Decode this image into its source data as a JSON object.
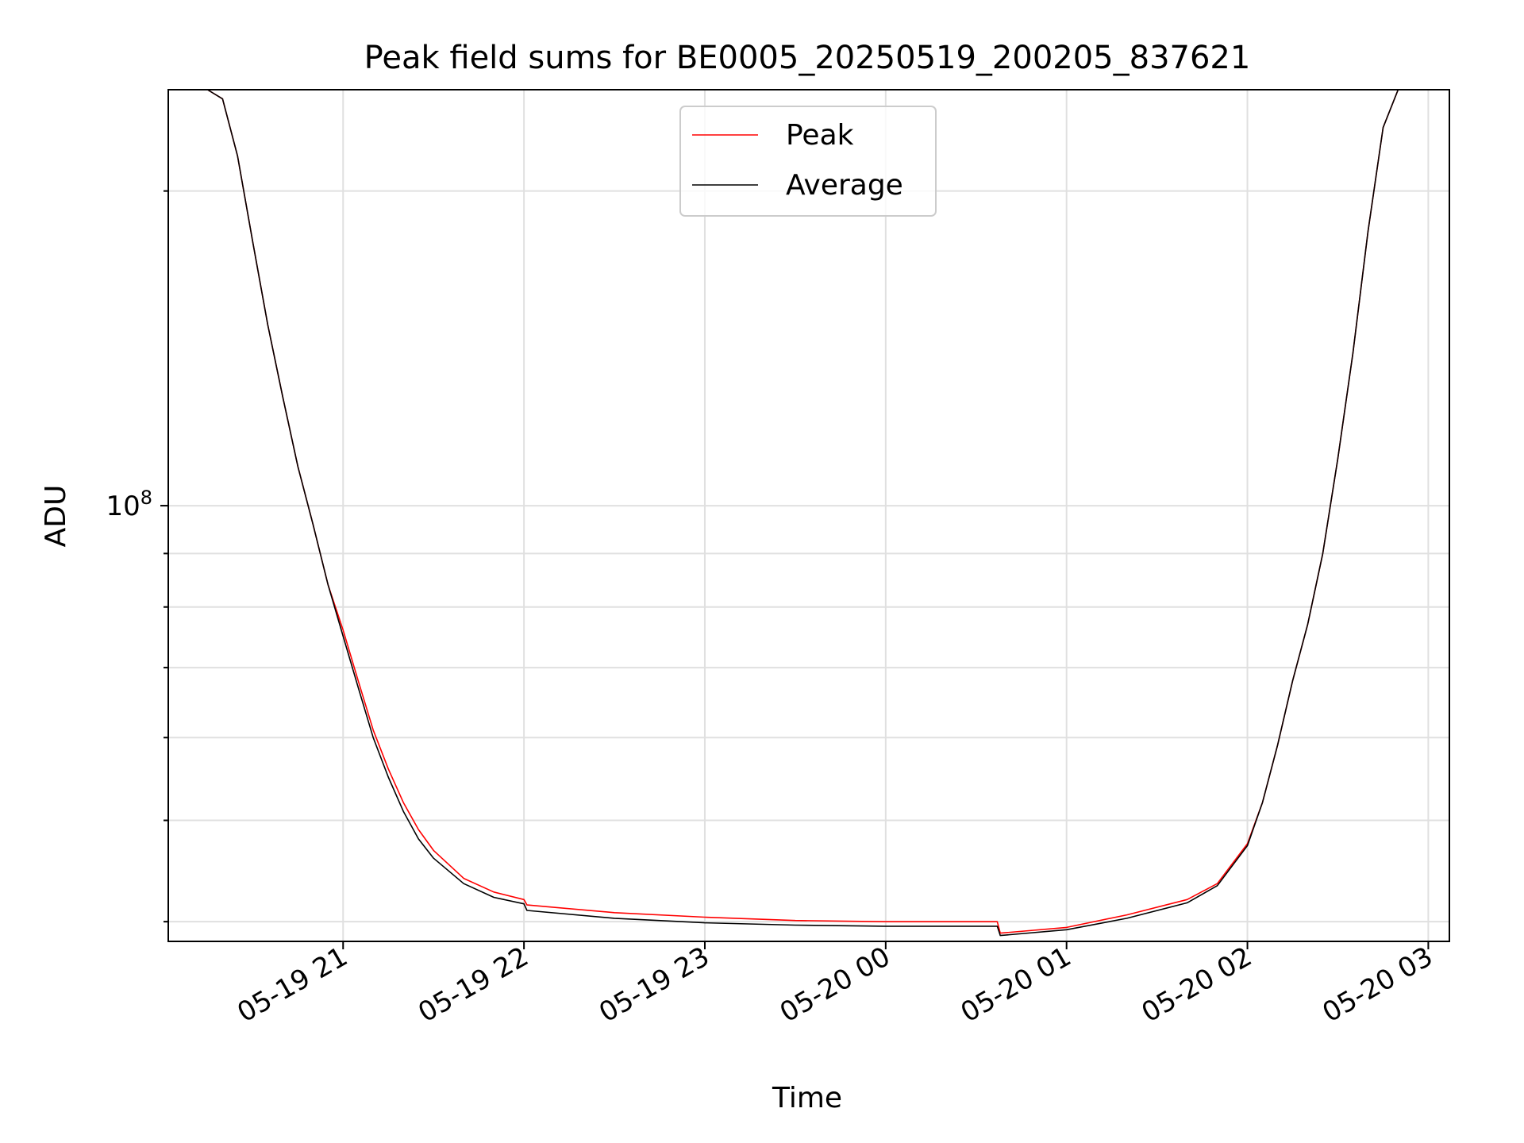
{
  "chart_data": {
    "type": "line",
    "title": "Peak field sums for BE0005_20250519_200205_837621",
    "xlabel": "Time",
    "ylabel": "ADU",
    "y_scale": "log",
    "y_tick_labels": [
      {
        "value": 100000000,
        "base": "10",
        "exponent": "8"
      }
    ],
    "x_ticks": [
      "05-19 21",
      "05-19 22",
      "05-19 23",
      "05-20 00",
      "05-20 01",
      "05-20 02",
      "05-20 03"
    ],
    "xlim": [
      "2025-05-19 20:02",
      "2025-05-20 03:07"
    ],
    "ylim": [
      38300000,
      250000000
    ],
    "grid": true,
    "legend_position": "upper center",
    "series": [
      {
        "name": "Peak",
        "color": "#ff0000",
        "points": [
          [
            "2025-05-19 20:02",
            250000000
          ],
          [
            "2025-05-19 20:15",
            250000000
          ],
          [
            "2025-05-19 20:20",
            245000000
          ],
          [
            "2025-05-19 20:25",
            216000000
          ],
          [
            "2025-05-19 20:30",
            179000000
          ],
          [
            "2025-05-19 20:35",
            149000000
          ],
          [
            "2025-05-19 20:40",
            127000000
          ],
          [
            "2025-05-19 20:45",
            109000000
          ],
          [
            "2025-05-19 20:50",
            96000000
          ],
          [
            "2025-05-19 20:55",
            84000000
          ],
          [
            "2025-05-19 21:00",
            76000000
          ],
          [
            "2025-05-19 21:05",
            68000000
          ],
          [
            "2025-05-19 21:10",
            61000000
          ],
          [
            "2025-05-19 21:15",
            56000000
          ],
          [
            "2025-05-19 21:20",
            52000000
          ],
          [
            "2025-05-19 21:25",
            49000000
          ],
          [
            "2025-05-19 21:30",
            46800000
          ],
          [
            "2025-05-19 21:40",
            44000000
          ],
          [
            "2025-05-19 21:50",
            42700000
          ],
          [
            "2025-05-19 22:00",
            42000000
          ],
          [
            "2025-05-19 22:01",
            41500000
          ],
          [
            "2025-05-19 22:30",
            40800000
          ],
          [
            "2025-05-19 23:00",
            40400000
          ],
          [
            "2025-05-19 23:30",
            40100000
          ],
          [
            "2025-05-20 00:00",
            40000000
          ],
          [
            "2025-05-20 00:37",
            40000000
          ],
          [
            "2025-05-20 00:38",
            39000000
          ],
          [
            "2025-05-20 01:00",
            39500000
          ],
          [
            "2025-05-20 01:20",
            40600000
          ],
          [
            "2025-05-20 01:40",
            42000000
          ],
          [
            "2025-05-20 01:50",
            43500000
          ],
          [
            "2025-05-20 02:00",
            47500000
          ],
          [
            "2025-05-20 02:05",
            52000000
          ],
          [
            "2025-05-20 02:10",
            59000000
          ],
          [
            "2025-05-20 02:15",
            68000000
          ],
          [
            "2025-05-20 02:20",
            77000000
          ],
          [
            "2025-05-20 02:25",
            90000000
          ],
          [
            "2025-05-20 02:30",
            111000000
          ],
          [
            "2025-05-20 02:35",
            140000000
          ],
          [
            "2025-05-20 02:40",
            183000000
          ],
          [
            "2025-05-20 02:45",
            230000000
          ],
          [
            "2025-05-20 02:50",
            250000000
          ],
          [
            "2025-05-20 03:07",
            250000000
          ]
        ]
      },
      {
        "name": "Average",
        "color": "#000000",
        "points": [
          [
            "2025-05-19 20:02",
            250000000
          ],
          [
            "2025-05-19 20:15",
            250000000
          ],
          [
            "2025-05-19 20:20",
            245000000
          ],
          [
            "2025-05-19 20:25",
            216000000
          ],
          [
            "2025-05-19 20:30",
            179000000
          ],
          [
            "2025-05-19 20:35",
            149000000
          ],
          [
            "2025-05-19 20:40",
            127000000
          ],
          [
            "2025-05-19 20:45",
            109000000
          ],
          [
            "2025-05-19 20:50",
            96000000
          ],
          [
            "2025-05-19 20:55",
            84000000
          ],
          [
            "2025-05-19 21:00",
            75000000
          ],
          [
            "2025-05-19 21:05",
            67000000
          ],
          [
            "2025-05-19 21:10",
            60000000
          ],
          [
            "2025-05-19 21:15",
            55000000
          ],
          [
            "2025-05-19 21:20",
            51000000
          ],
          [
            "2025-05-19 21:25",
            48000000
          ],
          [
            "2025-05-19 21:30",
            46000000
          ],
          [
            "2025-05-19 21:40",
            43500000
          ],
          [
            "2025-05-19 21:50",
            42200000
          ],
          [
            "2025-05-19 22:00",
            41600000
          ],
          [
            "2025-05-19 22:01",
            41000000
          ],
          [
            "2025-05-19 22:30",
            40300000
          ],
          [
            "2025-05-19 23:00",
            39900000
          ],
          [
            "2025-05-19 23:30",
            39700000
          ],
          [
            "2025-05-20 00:00",
            39600000
          ],
          [
            "2025-05-20 00:37",
            39600000
          ],
          [
            "2025-05-20 00:38",
            38800000
          ],
          [
            "2025-05-20 01:00",
            39300000
          ],
          [
            "2025-05-20 01:20",
            40300000
          ],
          [
            "2025-05-20 01:40",
            41700000
          ],
          [
            "2025-05-20 01:50",
            43300000
          ],
          [
            "2025-05-20 02:00",
            47300000
          ],
          [
            "2025-05-20 02:05",
            52000000
          ],
          [
            "2025-05-20 02:10",
            59000000
          ],
          [
            "2025-05-20 02:15",
            68000000
          ],
          [
            "2025-05-20 02:20",
            77000000
          ],
          [
            "2025-05-20 02:25",
            90000000
          ],
          [
            "2025-05-20 02:30",
            111000000
          ],
          [
            "2025-05-20 02:35",
            140000000
          ],
          [
            "2025-05-20 02:40",
            183000000
          ],
          [
            "2025-05-20 02:45",
            230000000
          ],
          [
            "2025-05-20 02:50",
            250000000
          ],
          [
            "2025-05-20 03:07",
            250000000
          ]
        ]
      }
    ]
  }
}
